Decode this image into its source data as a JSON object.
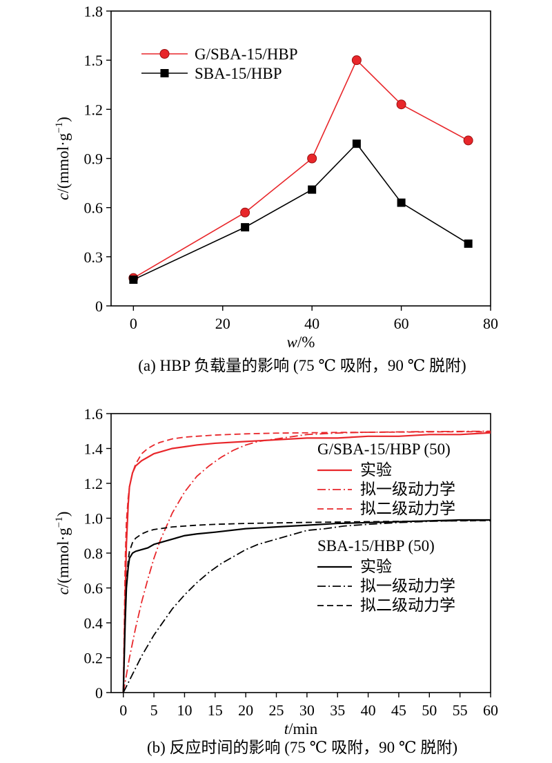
{
  "chart_data": [
    {
      "type": "line",
      "caption": "(a) HBP 负载量的影响 (75 ℃ 吸附，90 ℃ 脱附)",
      "xlabel_var": "w",
      "xlabel_unit": "/%",
      "ylabel_var": "c",
      "ylabel_unit": "/(mmol·g",
      "ylabel_sup": "−1",
      "ylabel_close": ")",
      "xlim": [
        -5,
        80
      ],
      "ylim": [
        0,
        1.8
      ],
      "xticks": [
        0,
        20,
        40,
        60,
        80
      ],
      "yticks": [
        0,
        0.3,
        0.6,
        0.9,
        1.2,
        1.5,
        1.8
      ],
      "xtick_labels": [
        "0",
        "20",
        "40",
        "60",
        "80"
      ],
      "ytick_labels": [
        "0",
        "0.3",
        "0.6",
        "0.9",
        "1.2",
        "1.5",
        "1.8"
      ],
      "legend_position": "top-left",
      "series": [
        {
          "name": "G/SBA-15/HBP",
          "color": "#e8262a",
          "marker": "circle",
          "x": [
            0,
            25,
            40,
            50,
            60,
            75
          ],
          "y": [
            0.17,
            0.57,
            0.9,
            1.5,
            1.23,
            1.01
          ]
        },
        {
          "name": "SBA-15/HBP",
          "color": "#000000",
          "marker": "square",
          "x": [
            0,
            25,
            40,
            50,
            60,
            75
          ],
          "y": [
            0.16,
            0.48,
            0.71,
            0.99,
            0.63,
            0.38
          ]
        }
      ]
    },
    {
      "type": "line",
      "caption": "(b) 反应时间的影响 (75 ℃ 吸附，90 ℃ 脱附)",
      "xlabel_var": "t",
      "xlabel_unit": "/min",
      "ylabel_var": "c",
      "ylabel_unit": "/(mmol·g",
      "ylabel_sup": "−1",
      "ylabel_close": ")",
      "xlim": [
        -2,
        60
      ],
      "ylim": [
        0,
        1.6
      ],
      "xticks": [
        0,
        5,
        10,
        15,
        20,
        25,
        30,
        35,
        40,
        45,
        50,
        55,
        60
      ],
      "yticks": [
        0,
        0.2,
        0.4,
        0.6,
        0.8,
        1.0,
        1.2,
        1.4,
        1.6
      ],
      "xtick_labels": [
        "0",
        "5",
        "10",
        "15",
        "20",
        "25",
        "30",
        "35",
        "40",
        "45",
        "50",
        "55",
        "60"
      ],
      "ytick_labels": [
        "0",
        "0.2",
        "0.4",
        "0.6",
        "0.8",
        "1.0",
        "1.2",
        "1.4",
        "1.6"
      ],
      "legend_position": "right",
      "legend_groups": [
        {
          "title": "G/SBA-15/HBP (50)",
          "color": "#e8262a",
          "items": [
            {
              "label": "实验",
              "style": "solid"
            },
            {
              "label": "拟一级动力学",
              "style": "dashdot"
            },
            {
              "label": "拟二级动力学",
              "style": "dashed"
            }
          ]
        },
        {
          "title": "SBA-15/HBP (50)",
          "color": "#000000",
          "items": [
            {
              "label": "实验",
              "style": "solid"
            },
            {
              "label": "拟一级动力学",
              "style": "dashdot"
            },
            {
              "label": "拟二级动力学",
              "style": "dashed"
            }
          ]
        }
      ],
      "series": [
        {
          "group": 0,
          "style": "solid",
          "color": "#e8262a",
          "x": [
            0,
            0.3,
            0.5,
            0.8,
            1,
            1.5,
            2,
            3,
            4,
            5,
            6,
            8,
            10,
            12,
            15,
            20,
            25,
            30,
            35,
            40,
            45,
            50,
            55,
            60
          ],
          "y": [
            0,
            0.55,
            0.85,
            1.08,
            1.18,
            1.26,
            1.3,
            1.33,
            1.35,
            1.37,
            1.38,
            1.4,
            1.41,
            1.42,
            1.43,
            1.44,
            1.45,
            1.46,
            1.46,
            1.47,
            1.47,
            1.48,
            1.48,
            1.49
          ]
        },
        {
          "group": 0,
          "style": "dashdot",
          "color": "#e8262a",
          "x": [
            0,
            1,
            2,
            3,
            4,
            5,
            6,
            7,
            8,
            9,
            10,
            12,
            14,
            16,
            18,
            20,
            22,
            24,
            26,
            28,
            30,
            33,
            36,
            40,
            45,
            50,
            55,
            60
          ],
          "y": [
            0,
            0.2,
            0.37,
            0.52,
            0.65,
            0.77,
            0.87,
            0.95,
            1.03,
            1.09,
            1.15,
            1.24,
            1.3,
            1.35,
            1.39,
            1.42,
            1.44,
            1.45,
            1.46,
            1.47,
            1.48,
            1.485,
            1.49,
            1.493,
            1.495,
            1.497,
            1.498,
            1.499
          ]
        },
        {
          "group": 0,
          "style": "dashed",
          "color": "#e8262a",
          "x": [
            0,
            0.3,
            0.5,
            0.8,
            1,
            1.5,
            2,
            3,
            4,
            5,
            6,
            8,
            10,
            12,
            15,
            20,
            25,
            30,
            35,
            40,
            45,
            50,
            55,
            60
          ],
          "y": [
            0,
            0.75,
            0.98,
            1.12,
            1.18,
            1.26,
            1.31,
            1.37,
            1.4,
            1.42,
            1.435,
            1.455,
            1.465,
            1.47,
            1.477,
            1.484,
            1.488,
            1.49,
            1.492,
            1.493,
            1.494,
            1.495,
            1.496,
            1.496
          ]
        },
        {
          "group": 1,
          "style": "solid",
          "color": "#000000",
          "x": [
            0,
            0.3,
            0.5,
            0.8,
            1,
            1.5,
            2,
            3,
            4,
            5,
            6,
            8,
            10,
            12,
            15,
            20,
            25,
            30,
            35,
            40,
            45,
            50,
            55,
            60
          ],
          "y": [
            0,
            0.4,
            0.6,
            0.72,
            0.77,
            0.8,
            0.81,
            0.82,
            0.83,
            0.85,
            0.86,
            0.88,
            0.9,
            0.91,
            0.92,
            0.94,
            0.95,
            0.96,
            0.97,
            0.975,
            0.98,
            0.985,
            0.99,
            0.99
          ]
        },
        {
          "group": 1,
          "style": "dashdot",
          "color": "#000000",
          "x": [
            0,
            1,
            2,
            3,
            4,
            5,
            6,
            8,
            10,
            12,
            14,
            16,
            18,
            20,
            22,
            25,
            28,
            30,
            33,
            36,
            40,
            45,
            50,
            55,
            60
          ],
          "y": [
            0,
            0.07,
            0.14,
            0.21,
            0.27,
            0.33,
            0.38,
            0.48,
            0.56,
            0.63,
            0.69,
            0.74,
            0.78,
            0.82,
            0.85,
            0.88,
            0.91,
            0.93,
            0.94,
            0.955,
            0.965,
            0.975,
            0.982,
            0.986,
            0.989
          ]
        },
        {
          "group": 1,
          "style": "dashed",
          "color": "#000000",
          "x": [
            0,
            0.3,
            0.5,
            0.8,
            1,
            1.5,
            2,
            3,
            4,
            5,
            6,
            8,
            10,
            12,
            15,
            20,
            25,
            30,
            35,
            40,
            45,
            50,
            55,
            60
          ],
          "y": [
            0,
            0.45,
            0.63,
            0.76,
            0.81,
            0.86,
            0.885,
            0.91,
            0.925,
            0.935,
            0.94,
            0.95,
            0.955,
            0.96,
            0.965,
            0.97,
            0.973,
            0.976,
            0.978,
            0.98,
            0.982,
            0.984,
            0.985,
            0.986
          ]
        }
      ]
    }
  ]
}
